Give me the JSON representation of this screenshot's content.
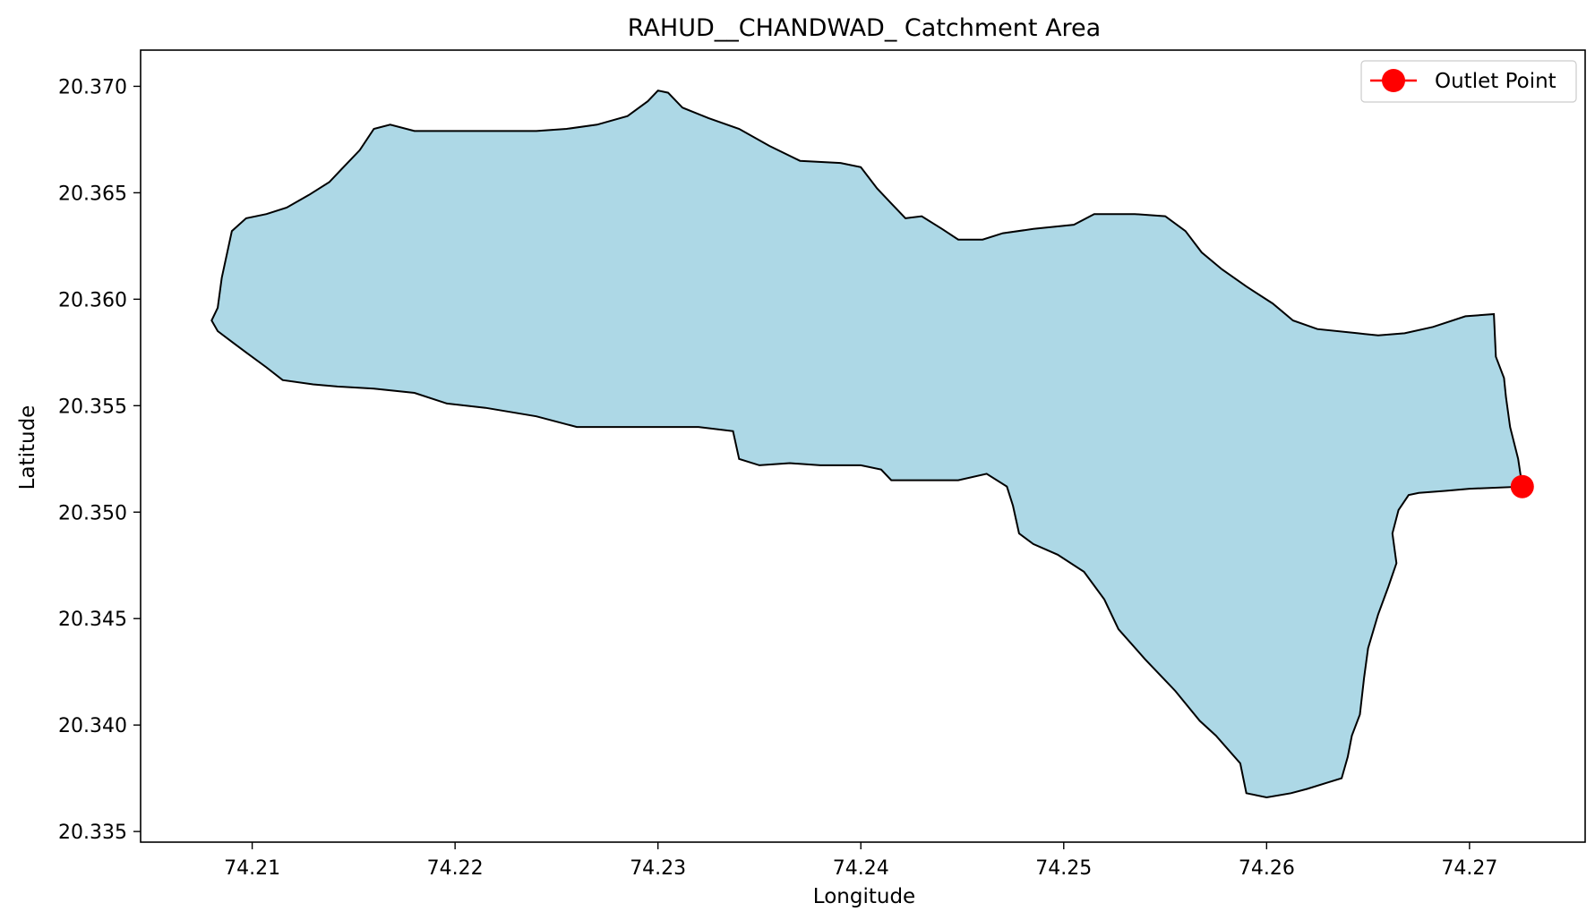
{
  "chart_data": {
    "type": "area",
    "title": "RAHUD__CHANDWAD_ Catchment Area",
    "xlabel": "Longitude",
    "ylabel": "Latitude",
    "xlim": [
      74.2045,
      74.2757
    ],
    "ylim": [
      20.3345,
      20.3717
    ],
    "x_ticks": [
      74.21,
      74.22,
      74.23,
      74.24,
      74.25,
      74.26,
      74.27
    ],
    "x_tick_labels": [
      "74.21",
      "74.22",
      "74.23",
      "74.24",
      "74.25",
      "74.26",
      "74.27"
    ],
    "y_ticks": [
      20.335,
      20.34,
      20.345,
      20.35,
      20.355,
      20.36,
      20.365,
      20.37
    ],
    "y_tick_labels": [
      "20.335",
      "20.340",
      "20.345",
      "20.350",
      "20.355",
      "20.360",
      "20.365",
      "20.370"
    ],
    "grid": false,
    "legend_position": "top-right",
    "colors": {
      "fill": "#add8e6",
      "edge": "#000000",
      "outlet": "#ff0000"
    },
    "series": [
      {
        "kind": "polygon",
        "points": [
          [
            74.208,
            20.359
          ],
          [
            74.2083,
            20.3596
          ],
          [
            74.2085,
            20.361
          ],
          [
            74.209,
            20.3632
          ],
          [
            74.2097,
            20.3638
          ],
          [
            74.2107,
            20.364
          ],
          [
            74.2117,
            20.3643
          ],
          [
            74.2128,
            20.3649
          ],
          [
            74.2138,
            20.3655
          ],
          [
            74.2145,
            20.3662
          ],
          [
            74.2153,
            20.367
          ],
          [
            74.216,
            20.368
          ],
          [
            74.2168,
            20.3682
          ],
          [
            74.218,
            20.3679
          ],
          [
            74.22,
            20.3679
          ],
          [
            74.222,
            20.3679
          ],
          [
            74.224,
            20.3679
          ],
          [
            74.2255,
            20.368
          ],
          [
            74.227,
            20.3682
          ],
          [
            74.2285,
            20.3686
          ],
          [
            74.2295,
            20.3693
          ],
          [
            74.23,
            20.3698
          ],
          [
            74.2305,
            20.3697
          ],
          [
            74.2312,
            20.369
          ],
          [
            74.2325,
            20.3685
          ],
          [
            74.234,
            20.368
          ],
          [
            74.2355,
            20.3672
          ],
          [
            74.237,
            20.3665
          ],
          [
            74.239,
            20.3664
          ],
          [
            74.24,
            20.3662
          ],
          [
            74.2408,
            20.3652
          ],
          [
            74.2415,
            20.3645
          ],
          [
            74.2422,
            20.3638
          ],
          [
            74.243,
            20.3639
          ],
          [
            74.244,
            20.3633
          ],
          [
            74.2448,
            20.3628
          ],
          [
            74.246,
            20.3628
          ],
          [
            74.247,
            20.3631
          ],
          [
            74.2485,
            20.3633
          ],
          [
            74.2505,
            20.3635
          ],
          [
            74.2515,
            20.364
          ],
          [
            74.2535,
            20.364
          ],
          [
            74.255,
            20.3639
          ],
          [
            74.256,
            20.3632
          ],
          [
            74.2568,
            20.3622
          ],
          [
            74.2578,
            20.3614
          ],
          [
            74.259,
            20.3606
          ],
          [
            74.2603,
            20.3598
          ],
          [
            74.2613,
            20.359
          ],
          [
            74.2625,
            20.3586
          ],
          [
            74.2645,
            20.3584
          ],
          [
            74.2655,
            20.3583
          ],
          [
            74.2668,
            20.3584
          ],
          [
            74.2682,
            20.3587
          ],
          [
            74.2698,
            20.3592
          ],
          [
            74.2712,
            20.3593
          ],
          [
            74.2713,
            20.3573
          ],
          [
            74.2717,
            20.3563
          ],
          [
            74.2718,
            20.3554
          ],
          [
            74.272,
            20.354
          ],
          [
            74.2724,
            20.3525
          ],
          [
            74.2726,
            20.3512
          ],
          [
            74.27,
            20.3511
          ],
          [
            74.2688,
            20.351
          ],
          [
            74.2675,
            20.3509
          ],
          [
            74.267,
            20.3508
          ],
          [
            74.2665,
            20.3501
          ],
          [
            74.2662,
            20.349
          ],
          [
            74.2664,
            20.3476
          ],
          [
            74.266,
            20.3465
          ],
          [
            74.2655,
            20.3452
          ],
          [
            74.265,
            20.3436
          ],
          [
            74.2648,
            20.3422
          ],
          [
            74.2646,
            20.3405
          ],
          [
            74.2642,
            20.3395
          ],
          [
            74.264,
            20.3385
          ],
          [
            74.2637,
            20.3375
          ],
          [
            74.263,
            20.3373
          ],
          [
            74.262,
            20.337
          ],
          [
            74.2612,
            20.3368
          ],
          [
            74.26,
            20.3366
          ],
          [
            74.259,
            20.3368
          ],
          [
            74.2587,
            20.3382
          ],
          [
            74.2575,
            20.3395
          ],
          [
            74.2567,
            20.3402
          ],
          [
            74.2555,
            20.3416
          ],
          [
            74.254,
            20.3431
          ],
          [
            74.2527,
            20.3445
          ],
          [
            74.252,
            20.3459
          ],
          [
            74.251,
            20.3472
          ],
          [
            74.2497,
            20.348
          ],
          [
            74.2485,
            20.3485
          ],
          [
            74.2478,
            20.349
          ],
          [
            74.2475,
            20.3503
          ],
          [
            74.2472,
            20.3512
          ],
          [
            74.2462,
            20.3518
          ],
          [
            74.2448,
            20.3515
          ],
          [
            74.2432,
            20.3515
          ],
          [
            74.2415,
            20.3515
          ],
          [
            74.241,
            20.352
          ],
          [
            74.24,
            20.3522
          ],
          [
            74.238,
            20.3522
          ],
          [
            74.2365,
            20.3523
          ],
          [
            74.235,
            20.3522
          ],
          [
            74.234,
            20.3525
          ],
          [
            74.2337,
            20.3538
          ],
          [
            74.232,
            20.354
          ],
          [
            74.23,
            20.354
          ],
          [
            74.228,
            20.354
          ],
          [
            74.226,
            20.354
          ],
          [
            74.224,
            20.3545
          ],
          [
            74.2215,
            20.3549
          ],
          [
            74.2196,
            20.3551
          ],
          [
            74.218,
            20.3556
          ],
          [
            74.216,
            20.3558
          ],
          [
            74.2142,
            20.3559
          ],
          [
            74.213,
            20.356
          ],
          [
            74.2115,
            20.3562
          ],
          [
            74.2107,
            20.3568
          ],
          [
            74.2097,
            20.3575
          ],
          [
            74.209,
            20.358
          ],
          [
            74.2083,
            20.3585
          ]
        ]
      },
      {
        "kind": "point",
        "name": "Outlet Point",
        "x": 74.2726,
        "y": 20.3512
      }
    ]
  }
}
